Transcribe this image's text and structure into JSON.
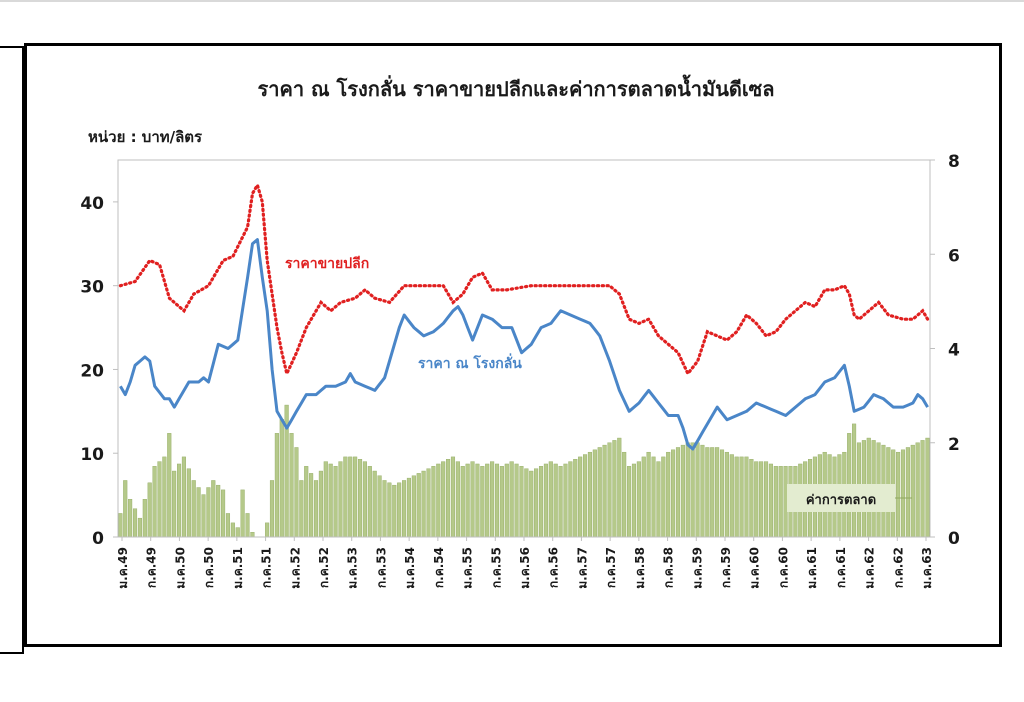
{
  "chart_data": {
    "type": "bar+line",
    "title": "ราคา ณ โรงกลั่น ราคาขายปลีกและค่าการตลาดน้ำมันดีเซล",
    "unit_label": "หน่วย : บาท/ลิตร",
    "y_left": {
      "ticks": [
        0,
        10,
        20,
        30,
        40
      ],
      "range": [
        0,
        45
      ]
    },
    "y_right": {
      "ticks": [
        0,
        2,
        4,
        6,
        8
      ],
      "range": [
        0,
        8
      ]
    },
    "x_tick_labels": [
      "ม.ค.49",
      "ก.ค.49",
      "ม.ค.50",
      "ก.ค.50",
      "ม.ค.51",
      "ก.ค.51",
      "ม.ค.52",
      "ก.ค.52",
      "ม.ค.53",
      "ก.ค.53",
      "ม.ค.54",
      "ก.ค.54",
      "ม.ค.55",
      "ก.ค.55",
      "ม.ค.56",
      "ก.ค.56",
      "ม.ค.57",
      "ก.ค.57",
      "ม.ค.58",
      "ก.ค.58",
      "ม.ค.59",
      "ก.ค.59",
      "ม.ค.60",
      "ก.ค.60",
      "ม.ค.61",
      "ก.ค.61",
      "ม.ค.62",
      "ก.ค.62",
      "ม.ค.63"
    ],
    "colors": {
      "retail": "#e02020",
      "refinery": "#4a86c8",
      "margin": "#b5c98a",
      "margin_edge": "#8fa85e",
      "axis": "#bfbfbf"
    },
    "series": [
      {
        "name": "ราคาขายปลีก",
        "axis": "left",
        "style": "dotted",
        "anchors": [
          [
            0,
            30
          ],
          [
            3,
            30.5
          ],
          [
            6,
            33
          ],
          [
            8,
            32.5
          ],
          [
            10,
            28.5
          ],
          [
            13,
            27
          ],
          [
            15,
            29
          ],
          [
            18,
            30
          ],
          [
            21,
            33
          ],
          [
            23,
            33.5
          ],
          [
            26,
            37
          ],
          [
            27,
            41
          ],
          [
            28,
            42
          ],
          [
            29,
            40
          ],
          [
            30,
            33
          ],
          [
            32,
            25
          ],
          [
            33,
            22
          ],
          [
            34,
            19.5
          ],
          [
            36,
            22
          ],
          [
            38,
            25
          ],
          [
            40,
            27
          ],
          [
            41,
            28
          ],
          [
            43,
            27
          ],
          [
            45,
            28
          ],
          [
            48,
            28.5
          ],
          [
            50,
            29.5
          ],
          [
            52,
            28.5
          ],
          [
            55,
            28
          ],
          [
            58,
            30
          ],
          [
            60,
            30
          ],
          [
            63,
            30
          ],
          [
            66,
            30
          ],
          [
            68,
            28
          ],
          [
            70,
            29
          ],
          [
            72,
            31
          ],
          [
            74,
            31.5
          ],
          [
            76,
            29.5
          ],
          [
            79,
            29.5
          ],
          [
            84,
            30
          ],
          [
            90,
            30
          ],
          [
            95,
            30
          ],
          [
            100,
            30
          ],
          [
            102,
            29
          ],
          [
            104,
            26
          ],
          [
            106,
            25.5
          ],
          [
            108,
            26
          ],
          [
            110,
            24
          ],
          [
            112,
            23
          ],
          [
            114,
            22
          ],
          [
            116,
            19.5
          ],
          [
            118,
            21
          ],
          [
            120,
            24.5
          ],
          [
            122,
            24
          ],
          [
            124,
            23.5
          ],
          [
            126,
            24.5
          ],
          [
            128,
            26.5
          ],
          [
            130,
            25.5
          ],
          [
            132,
            24
          ],
          [
            134,
            24.5
          ],
          [
            136,
            26
          ],
          [
            138,
            27
          ],
          [
            140,
            28
          ],
          [
            142,
            27.5
          ],
          [
            144,
            29.5
          ],
          [
            146,
            29.5
          ],
          [
            148,
            30
          ],
          [
            149,
            29
          ],
          [
            150,
            26.5
          ],
          [
            151,
            26
          ],
          [
            153,
            27
          ],
          [
            155,
            28
          ],
          [
            157,
            26.5
          ],
          [
            160,
            26
          ],
          [
            162,
            26
          ],
          [
            164,
            27
          ],
          [
            165,
            26
          ]
        ]
      },
      {
        "name": "ราคา ณ โรงกลั่น",
        "axis": "left",
        "style": "solid",
        "anchors": [
          [
            0,
            18
          ],
          [
            1,
            17
          ],
          [
            2,
            18.5
          ],
          [
            3,
            20.5
          ],
          [
            5,
            21.5
          ],
          [
            6,
            21
          ],
          [
            7,
            18
          ],
          [
            9,
            16.5
          ],
          [
            10,
            16.5
          ],
          [
            11,
            15.5
          ],
          [
            12,
            16.5
          ],
          [
            14,
            18.5
          ],
          [
            16,
            18.5
          ],
          [
            17,
            19
          ],
          [
            18,
            18.5
          ],
          [
            20,
            23
          ],
          [
            22,
            22.5
          ],
          [
            24,
            23.5
          ],
          [
            26,
            31
          ],
          [
            27,
            35
          ],
          [
            28,
            35.5
          ],
          [
            29,
            31
          ],
          [
            30,
            27
          ],
          [
            31,
            20
          ],
          [
            32,
            15
          ],
          [
            33,
            14
          ],
          [
            34,
            13
          ],
          [
            36,
            15
          ],
          [
            38,
            17
          ],
          [
            40,
            17
          ],
          [
            42,
            18
          ],
          [
            44,
            18
          ],
          [
            46,
            18.5
          ],
          [
            47,
            19.5
          ],
          [
            48,
            18.5
          ],
          [
            50,
            18
          ],
          [
            52,
            17.5
          ],
          [
            54,
            19
          ],
          [
            55,
            21
          ],
          [
            57,
            25
          ],
          [
            58,
            26.5
          ],
          [
            60,
            25
          ],
          [
            62,
            24
          ],
          [
            64,
            24.5
          ],
          [
            66,
            25.5
          ],
          [
            68,
            27
          ],
          [
            69,
            27.5
          ],
          [
            70,
            26.5
          ],
          [
            72,
            23.5
          ],
          [
            74,
            26.5
          ],
          [
            76,
            26
          ],
          [
            78,
            25
          ],
          [
            80,
            25
          ],
          [
            82,
            22
          ],
          [
            84,
            23
          ],
          [
            86,
            25
          ],
          [
            88,
            25.5
          ],
          [
            90,
            27
          ],
          [
            92,
            26.5
          ],
          [
            94,
            26
          ],
          [
            96,
            25.5
          ],
          [
            98,
            24
          ],
          [
            100,
            21
          ],
          [
            102,
            17.5
          ],
          [
            104,
            15
          ],
          [
            106,
            16
          ],
          [
            108,
            17.5
          ],
          [
            110,
            16
          ],
          [
            112,
            14.5
          ],
          [
            114,
            14.5
          ],
          [
            115,
            13
          ],
          [
            116,
            11
          ],
          [
            117,
            10.5
          ],
          [
            118,
            11.5
          ],
          [
            120,
            13.5
          ],
          [
            122,
            15.5
          ],
          [
            124,
            14
          ],
          [
            126,
            14.5
          ],
          [
            128,
            15
          ],
          [
            130,
            16
          ],
          [
            132,
            15.5
          ],
          [
            134,
            15
          ],
          [
            136,
            14.5
          ],
          [
            138,
            15.5
          ],
          [
            140,
            16.5
          ],
          [
            142,
            17
          ],
          [
            144,
            18.5
          ],
          [
            146,
            19
          ],
          [
            148,
            20.5
          ],
          [
            149,
            18
          ],
          [
            150,
            15
          ],
          [
            152,
            15.5
          ],
          [
            154,
            17
          ],
          [
            156,
            16.5
          ],
          [
            158,
            15.5
          ],
          [
            160,
            15.5
          ],
          [
            162,
            16
          ],
          [
            163,
            17
          ],
          [
            164,
            16.5
          ],
          [
            165,
            15.5
          ]
        ]
      },
      {
        "name": "ค่าการตลาด",
        "axis": "right",
        "style": "bar",
        "anchors": [
          [
            0,
            0.5
          ],
          [
            1,
            1.2
          ],
          [
            2,
            0.8
          ],
          [
            3,
            0.6
          ],
          [
            4,
            0.4
          ],
          [
            5,
            0.8
          ],
          [
            7,
            1.5
          ],
          [
            9,
            1.7
          ],
          [
            10,
            2.2
          ],
          [
            11,
            1.4
          ],
          [
            13,
            1.7
          ],
          [
            15,
            1.2
          ],
          [
            17,
            0.9
          ],
          [
            19,
            1.2
          ],
          [
            21,
            1.0
          ],
          [
            22,
            0.5
          ],
          [
            23,
            0.3
          ],
          [
            24,
            0.2
          ],
          [
            25,
            1.0
          ],
          [
            26,
            0.5
          ],
          [
            27,
            0.1
          ],
          [
            28,
            0
          ],
          [
            29,
            0
          ],
          [
            30,
            0.3
          ],
          [
            31,
            1.2
          ],
          [
            32,
            2.2
          ],
          [
            33,
            2.5
          ],
          [
            34,
            2.8
          ],
          [
            35,
            2.2
          ],
          [
            36,
            1.9
          ],
          [
            37,
            1.2
          ],
          [
            38,
            1.5
          ],
          [
            40,
            1.2
          ],
          [
            42,
            1.6
          ],
          [
            44,
            1.5
          ],
          [
            46,
            1.7
          ],
          [
            48,
            1.7
          ],
          [
            50,
            1.6
          ],
          [
            52,
            1.4
          ],
          [
            54,
            1.2
          ],
          [
            56,
            1.1
          ],
          [
            58,
            1.2
          ],
          [
            60,
            1.3
          ],
          [
            62,
            1.4
          ],
          [
            64,
            1.5
          ],
          [
            66,
            1.6
          ],
          [
            68,
            1.7
          ],
          [
            70,
            1.5
          ],
          [
            72,
            1.6
          ],
          [
            74,
            1.5
          ],
          [
            76,
            1.6
          ],
          [
            78,
            1.5
          ],
          [
            80,
            1.6
          ],
          [
            82,
            1.5
          ],
          [
            84,
            1.4
          ],
          [
            86,
            1.5
          ],
          [
            88,
            1.6
          ],
          [
            90,
            1.5
          ],
          [
            92,
            1.6
          ],
          [
            94,
            1.7
          ],
          [
            96,
            1.8
          ],
          [
            98,
            1.9
          ],
          [
            100,
            2.0
          ],
          [
            102,
            2.1
          ],
          [
            104,
            1.5
          ],
          [
            106,
            1.6
          ],
          [
            108,
            1.8
          ],
          [
            110,
            1.6
          ],
          [
            112,
            1.8
          ],
          [
            114,
            1.9
          ],
          [
            116,
            2.0
          ],
          [
            118,
            2.0
          ],
          [
            120,
            1.9
          ],
          [
            122,
            1.9
          ],
          [
            124,
            1.8
          ],
          [
            126,
            1.7
          ],
          [
            128,
            1.7
          ],
          [
            130,
            1.6
          ],
          [
            132,
            1.6
          ],
          [
            134,
            1.5
          ],
          [
            136,
            1.5
          ],
          [
            138,
            1.5
          ],
          [
            140,
            1.6
          ],
          [
            142,
            1.7
          ],
          [
            144,
            1.8
          ],
          [
            146,
            1.7
          ],
          [
            148,
            1.8
          ],
          [
            149,
            2.2
          ],
          [
            150,
            2.4
          ],
          [
            151,
            2.0
          ],
          [
            153,
            2.1
          ],
          [
            155,
            2.0
          ],
          [
            157,
            1.9
          ],
          [
            159,
            1.8
          ],
          [
            161,
            1.9
          ],
          [
            163,
            2.0
          ],
          [
            165,
            2.1
          ]
        ]
      }
    ],
    "series_labels": {
      "retail": "ราคาขายปลีก",
      "refinery": "ราคา ณ โรงกลั่น",
      "margin": "ค่าการตลาด"
    }
  }
}
